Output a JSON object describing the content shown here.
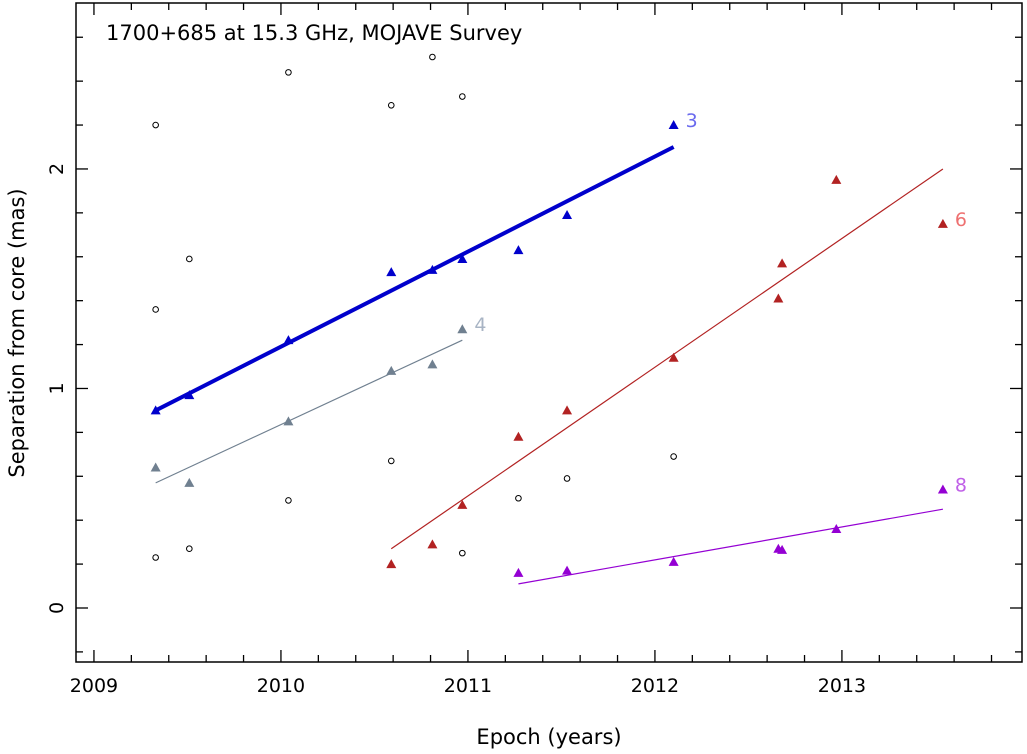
{
  "chart_data": {
    "type": "scatter",
    "title": "1700+685 at 15.3 GHz, MOJAVE Survey",
    "xlabel": "Epoch (years)",
    "ylabel": "Separation from core (mas)",
    "xlim": [
      2008.904,
      2013.963
    ],
    "ylim": [
      -0.246,
      2.756
    ],
    "x_ticks": [
      2009,
      2010,
      2011,
      2012,
      2013
    ],
    "y_ticks": [
      0,
      1,
      2
    ],
    "grid": false,
    "unassigned_points": {
      "marker": "open-circle",
      "color": "#000000",
      "x": [
        2009.33,
        2009.33,
        2009.33,
        2009.51,
        2009.51,
        2010.04,
        2010.04,
        2010.59,
        2010.59,
        2010.81,
        2010.97,
        2010.97,
        2011.27,
        2011.53,
        2012.1
      ],
      "y": [
        2.2,
        1.36,
        0.23,
        1.59,
        0.27,
        2.44,
        0.49,
        2.29,
        0.67,
        2.51,
        2.33,
        0.25,
        0.5,
        0.59,
        0.69
      ]
    },
    "series": [
      {
        "name": "3",
        "color": "#0000cc",
        "label_color": "#6a6aee",
        "x": [
          2009.33,
          2009.51,
          2010.04,
          2010.59,
          2010.81,
          2010.97,
          2011.27,
          2011.53,
          2012.1
        ],
        "y": [
          0.9,
          0.97,
          1.22,
          1.53,
          1.54,
          1.59,
          1.63,
          1.79,
          2.2
        ],
        "fit": {
          "x": [
            2009.33,
            2012.1
          ],
          "y": [
            0.9,
            2.1
          ],
          "thick": true
        }
      },
      {
        "name": "4",
        "color": "#708090",
        "label_color": "#a8b4c4",
        "x": [
          2009.33,
          2009.51,
          2010.04,
          2010.59,
          2010.81,
          2010.97
        ],
        "y": [
          0.64,
          0.57,
          0.85,
          1.08,
          1.11,
          1.27
        ],
        "fit": {
          "x": [
            2009.33,
            2010.97
          ],
          "y": [
            0.57,
            1.22
          ],
          "thick": false
        }
      },
      {
        "name": "6",
        "color": "#b22222",
        "label_color": "#ee7070",
        "x": [
          2010.59,
          2010.81,
          2010.97,
          2011.27,
          2011.53,
          2012.1,
          2012.66,
          2012.68,
          2012.97,
          2013.54
        ],
        "y": [
          0.2,
          0.29,
          0.47,
          0.78,
          0.9,
          1.14,
          1.41,
          1.57,
          1.95,
          1.75
        ],
        "fit": {
          "x": [
            2010.59,
            2013.54
          ],
          "y": [
            0.27,
            2.0
          ],
          "thick": false
        }
      },
      {
        "name": "8",
        "color": "#9400d3",
        "label_color": "#c060e8",
        "x": [
          2011.27,
          2011.53,
          2012.1,
          2012.66,
          2012.68,
          2012.97,
          2013.54
        ],
        "y": [
          0.16,
          0.17,
          0.21,
          0.27,
          0.265,
          0.36,
          0.54
        ],
        "fit": {
          "x": [
            2011.27,
            2013.54
          ],
          "y": [
            0.11,
            0.45
          ],
          "thick": false
        }
      }
    ]
  }
}
